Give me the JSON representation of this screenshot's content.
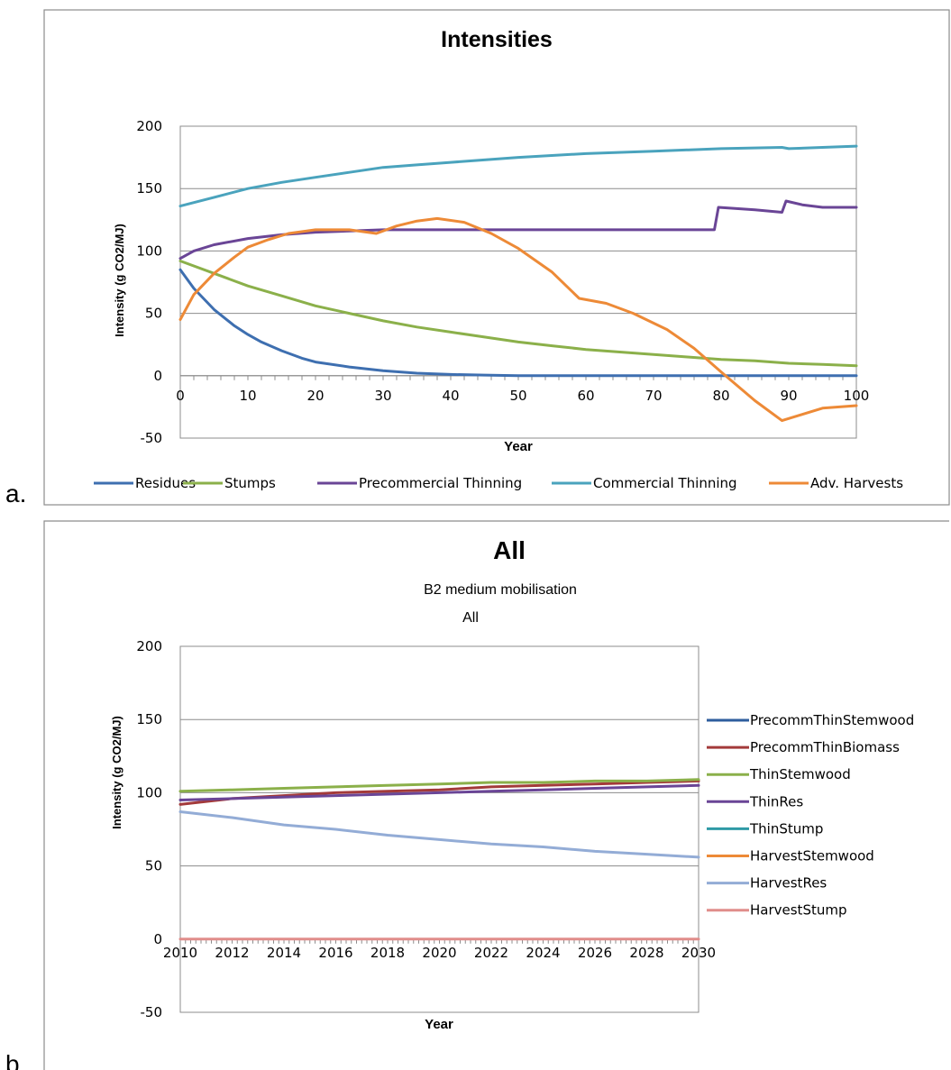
{
  "panels": [
    "a.",
    "b."
  ],
  "chart_data": [
    {
      "type": "line",
      "title": "Intensities",
      "subtitle": "",
      "subtitle2": "",
      "xlabel": "Year",
      "ylabel": "Intensity (g CO2/MJ)",
      "xlim": [
        0,
        100
      ],
      "ylim": [
        -50,
        200
      ],
      "xticks": [
        0,
        10,
        20,
        30,
        40,
        50,
        60,
        70,
        80,
        90,
        100
      ],
      "yticks": [
        -50,
        0,
        50,
        100,
        150,
        200
      ],
      "grid": true,
      "legend_position": "bottom",
      "series": [
        {
          "name": "Residues",
          "color": "#3e6fb0",
          "x": [
            0,
            2,
            5,
            8,
            10,
            12,
            15,
            18,
            20,
            25,
            30,
            35,
            40,
            45,
            50,
            60,
            70,
            80,
            90,
            100
          ],
          "y": [
            85,
            70,
            53,
            40,
            33,
            27,
            20,
            14,
            11,
            7,
            4,
            2,
            1,
            0.5,
            0,
            0,
            0,
            0,
            0,
            0
          ]
        },
        {
          "name": "Stumps",
          "color": "#8bb04a",
          "x": [
            0,
            5,
            10,
            15,
            20,
            25,
            30,
            35,
            40,
            45,
            50,
            55,
            60,
            65,
            70,
            75,
            80,
            85,
            90,
            95,
            100
          ],
          "y": [
            92,
            82,
            72,
            64,
            56,
            50,
            44,
            39,
            35,
            31,
            27,
            24,
            21,
            19,
            17,
            15,
            13,
            12,
            10,
            9,
            8
          ]
        },
        {
          "name": "Precommercial Thinning",
          "color": "#6a4596",
          "x": [
            0,
            2,
            5,
            10,
            15,
            20,
            25,
            30,
            40,
            50,
            60,
            70,
            79,
            79.6,
            85,
            89,
            89.6,
            92,
            95,
            100
          ],
          "y": [
            94,
            100,
            105,
            110,
            113,
            115,
            116,
            117,
            117,
            117,
            117,
            117,
            117,
            135,
            133,
            131,
            140,
            137,
            135,
            135
          ]
        },
        {
          "name": "Commercial Thinning",
          "color": "#4aa3bd",
          "x": [
            0,
            5,
            10,
            15,
            20,
            25,
            30,
            35,
            40,
            50,
            60,
            70,
            80,
            89,
            90,
            95,
            100
          ],
          "y": [
            136,
            143,
            150,
            155,
            159,
            163,
            167,
            169,
            171,
            175,
            178,
            180,
            182,
            183,
            182,
            183,
            184
          ]
        },
        {
          "name": "Adv. Harvests",
          "color": "#ed8a37",
          "x": [
            0,
            2,
            5,
            8,
            10,
            13,
            16,
            20,
            25,
            29,
            32,
            35,
            38,
            42,
            46,
            50,
            55,
            59,
            63,
            67,
            72,
            76,
            80,
            85,
            89,
            92,
            95,
            100
          ],
          "y": [
            45,
            65,
            82,
            95,
            103,
            109,
            114,
            117,
            117,
            114,
            120,
            124,
            126,
            123,
            114,
            102,
            83,
            62,
            58,
            50,
            37,
            22,
            3,
            -20,
            -36,
            -31,
            -26,
            -24
          ]
        }
      ]
    },
    {
      "type": "line",
      "title": "All",
      "subtitle": "B2 medium mobilisation",
      "subtitle2": "All",
      "xlabel": "Year",
      "ylabel": "Intensity (g CO2/MJ)",
      "xlim": [
        2010,
        2030
      ],
      "ylim": [
        -50,
        200
      ],
      "xticks": [
        2010,
        2012,
        2014,
        2016,
        2018,
        2020,
        2022,
        2024,
        2026,
        2028,
        2030
      ],
      "yticks": [
        -50,
        0,
        50,
        100,
        150,
        200
      ],
      "grid": true,
      "legend_position": "right",
      "series": [
        {
          "name": "PrecommThinStemwood",
          "color": "#2e5d9e",
          "x": [],
          "y": []
        },
        {
          "name": "PrecommThinBiomass",
          "color": "#a33a3a",
          "x": [
            2010,
            2012,
            2014,
            2016,
            2018,
            2020,
            2022,
            2024,
            2026,
            2028,
            2030
          ],
          "y": [
            92,
            96,
            98,
            100,
            101,
            102,
            104,
            105,
            106,
            107,
            108
          ]
        },
        {
          "name": "ThinStemwood",
          "color": "#8bb04a",
          "x": [
            2010,
            2012,
            2014,
            2016,
            2018,
            2020,
            2022,
            2024,
            2026,
            2028,
            2030
          ],
          "y": [
            101,
            102,
            103,
            104,
            105,
            106,
            107,
            107,
            108,
            108,
            109
          ]
        },
        {
          "name": "ThinRes",
          "color": "#6a4596",
          "x": [
            2010,
            2012,
            2014,
            2016,
            2018,
            2020,
            2022,
            2024,
            2026,
            2028,
            2030
          ],
          "y": [
            95,
            96,
            97,
            98,
            99,
            100,
            101,
            102,
            103,
            104,
            105
          ]
        },
        {
          "name": "ThinStump",
          "color": "#2f9aa6",
          "x": [],
          "y": []
        },
        {
          "name": "HarvestStemwood",
          "color": "#ed8a37",
          "x": [],
          "y": []
        },
        {
          "name": "HarvestRes",
          "color": "#93acd6",
          "x": [
            2010,
            2012,
            2014,
            2016,
            2018,
            2020,
            2022,
            2024,
            2026,
            2028,
            2030
          ],
          "y": [
            87,
            83,
            78,
            75,
            71,
            68,
            65,
            63,
            60,
            58,
            56
          ]
        },
        {
          "name": "HarvestStump",
          "color": "#e08d8b",
          "x": [
            2010,
            2030
          ],
          "y": [
            0,
            0
          ]
        }
      ]
    }
  ]
}
